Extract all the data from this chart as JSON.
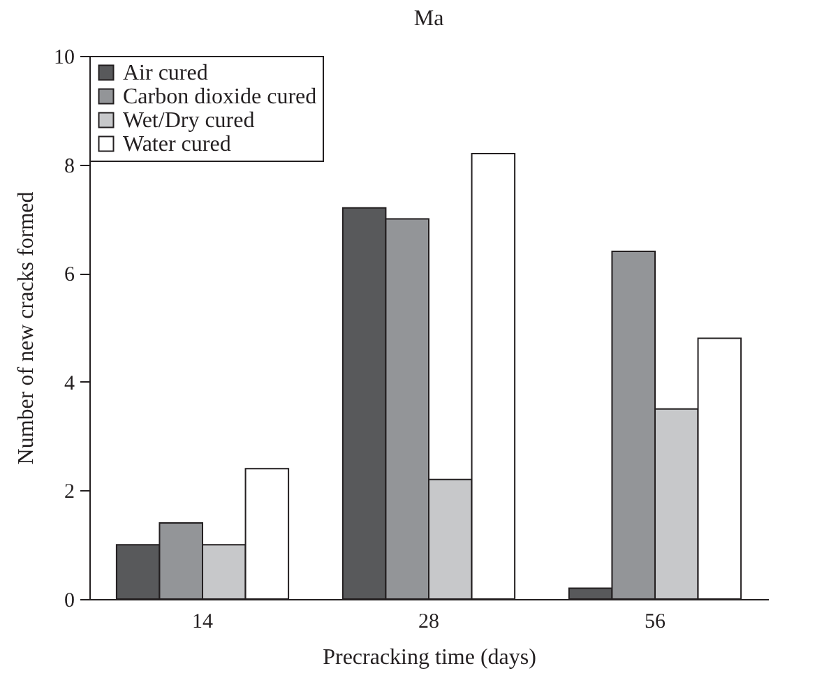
{
  "chart_data": {
    "type": "bar",
    "title": "Ma",
    "xlabel": "Precracking time (days)",
    "ylabel": "Number of new cracks formed",
    "categories": [
      "14",
      "28",
      "56"
    ],
    "series": [
      {
        "name": "Air cured",
        "color": "#58595b",
        "values": [
          1.0,
          7.2,
          0.2
        ]
      },
      {
        "name": "Carbon dioxide cured",
        "color": "#939598",
        "values": [
          1.4,
          7.0,
          6.4
        ]
      },
      {
        "name": "Wet/Dry cured",
        "color": "#c7c8ca",
        "values": [
          1.0,
          2.2,
          3.5
        ]
      },
      {
        "name": "Water cured",
        "color": "#ffffff",
        "values": [
          2.4,
          8.2,
          4.8
        ]
      }
    ],
    "ylim": [
      0,
      10
    ],
    "yticks": [
      0,
      2,
      4,
      6,
      8,
      10
    ],
    "grid": false,
    "legend": "top left"
  }
}
